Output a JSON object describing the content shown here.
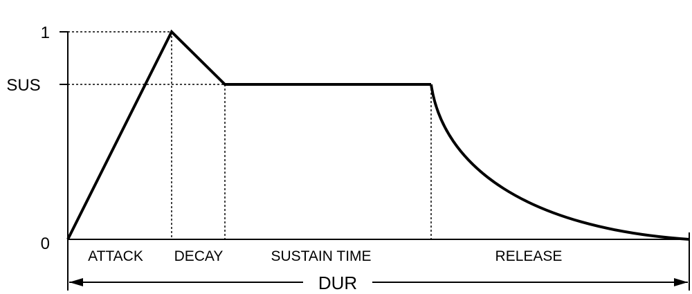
{
  "diagram": {
    "y_ticks": {
      "top": "1",
      "sustain": "SUS",
      "bottom": "0"
    },
    "segments": {
      "attack": "ATTACK",
      "decay": "DECAY",
      "sustain_time": "SUSTAIN TIME",
      "release": "RELEASE"
    },
    "duration_label": "DUR",
    "levels": {
      "peak": 1,
      "sustain_fraction": 0.75,
      "floor": 0
    },
    "colors": {
      "line": "#000000",
      "background": "#ffffff"
    }
  }
}
